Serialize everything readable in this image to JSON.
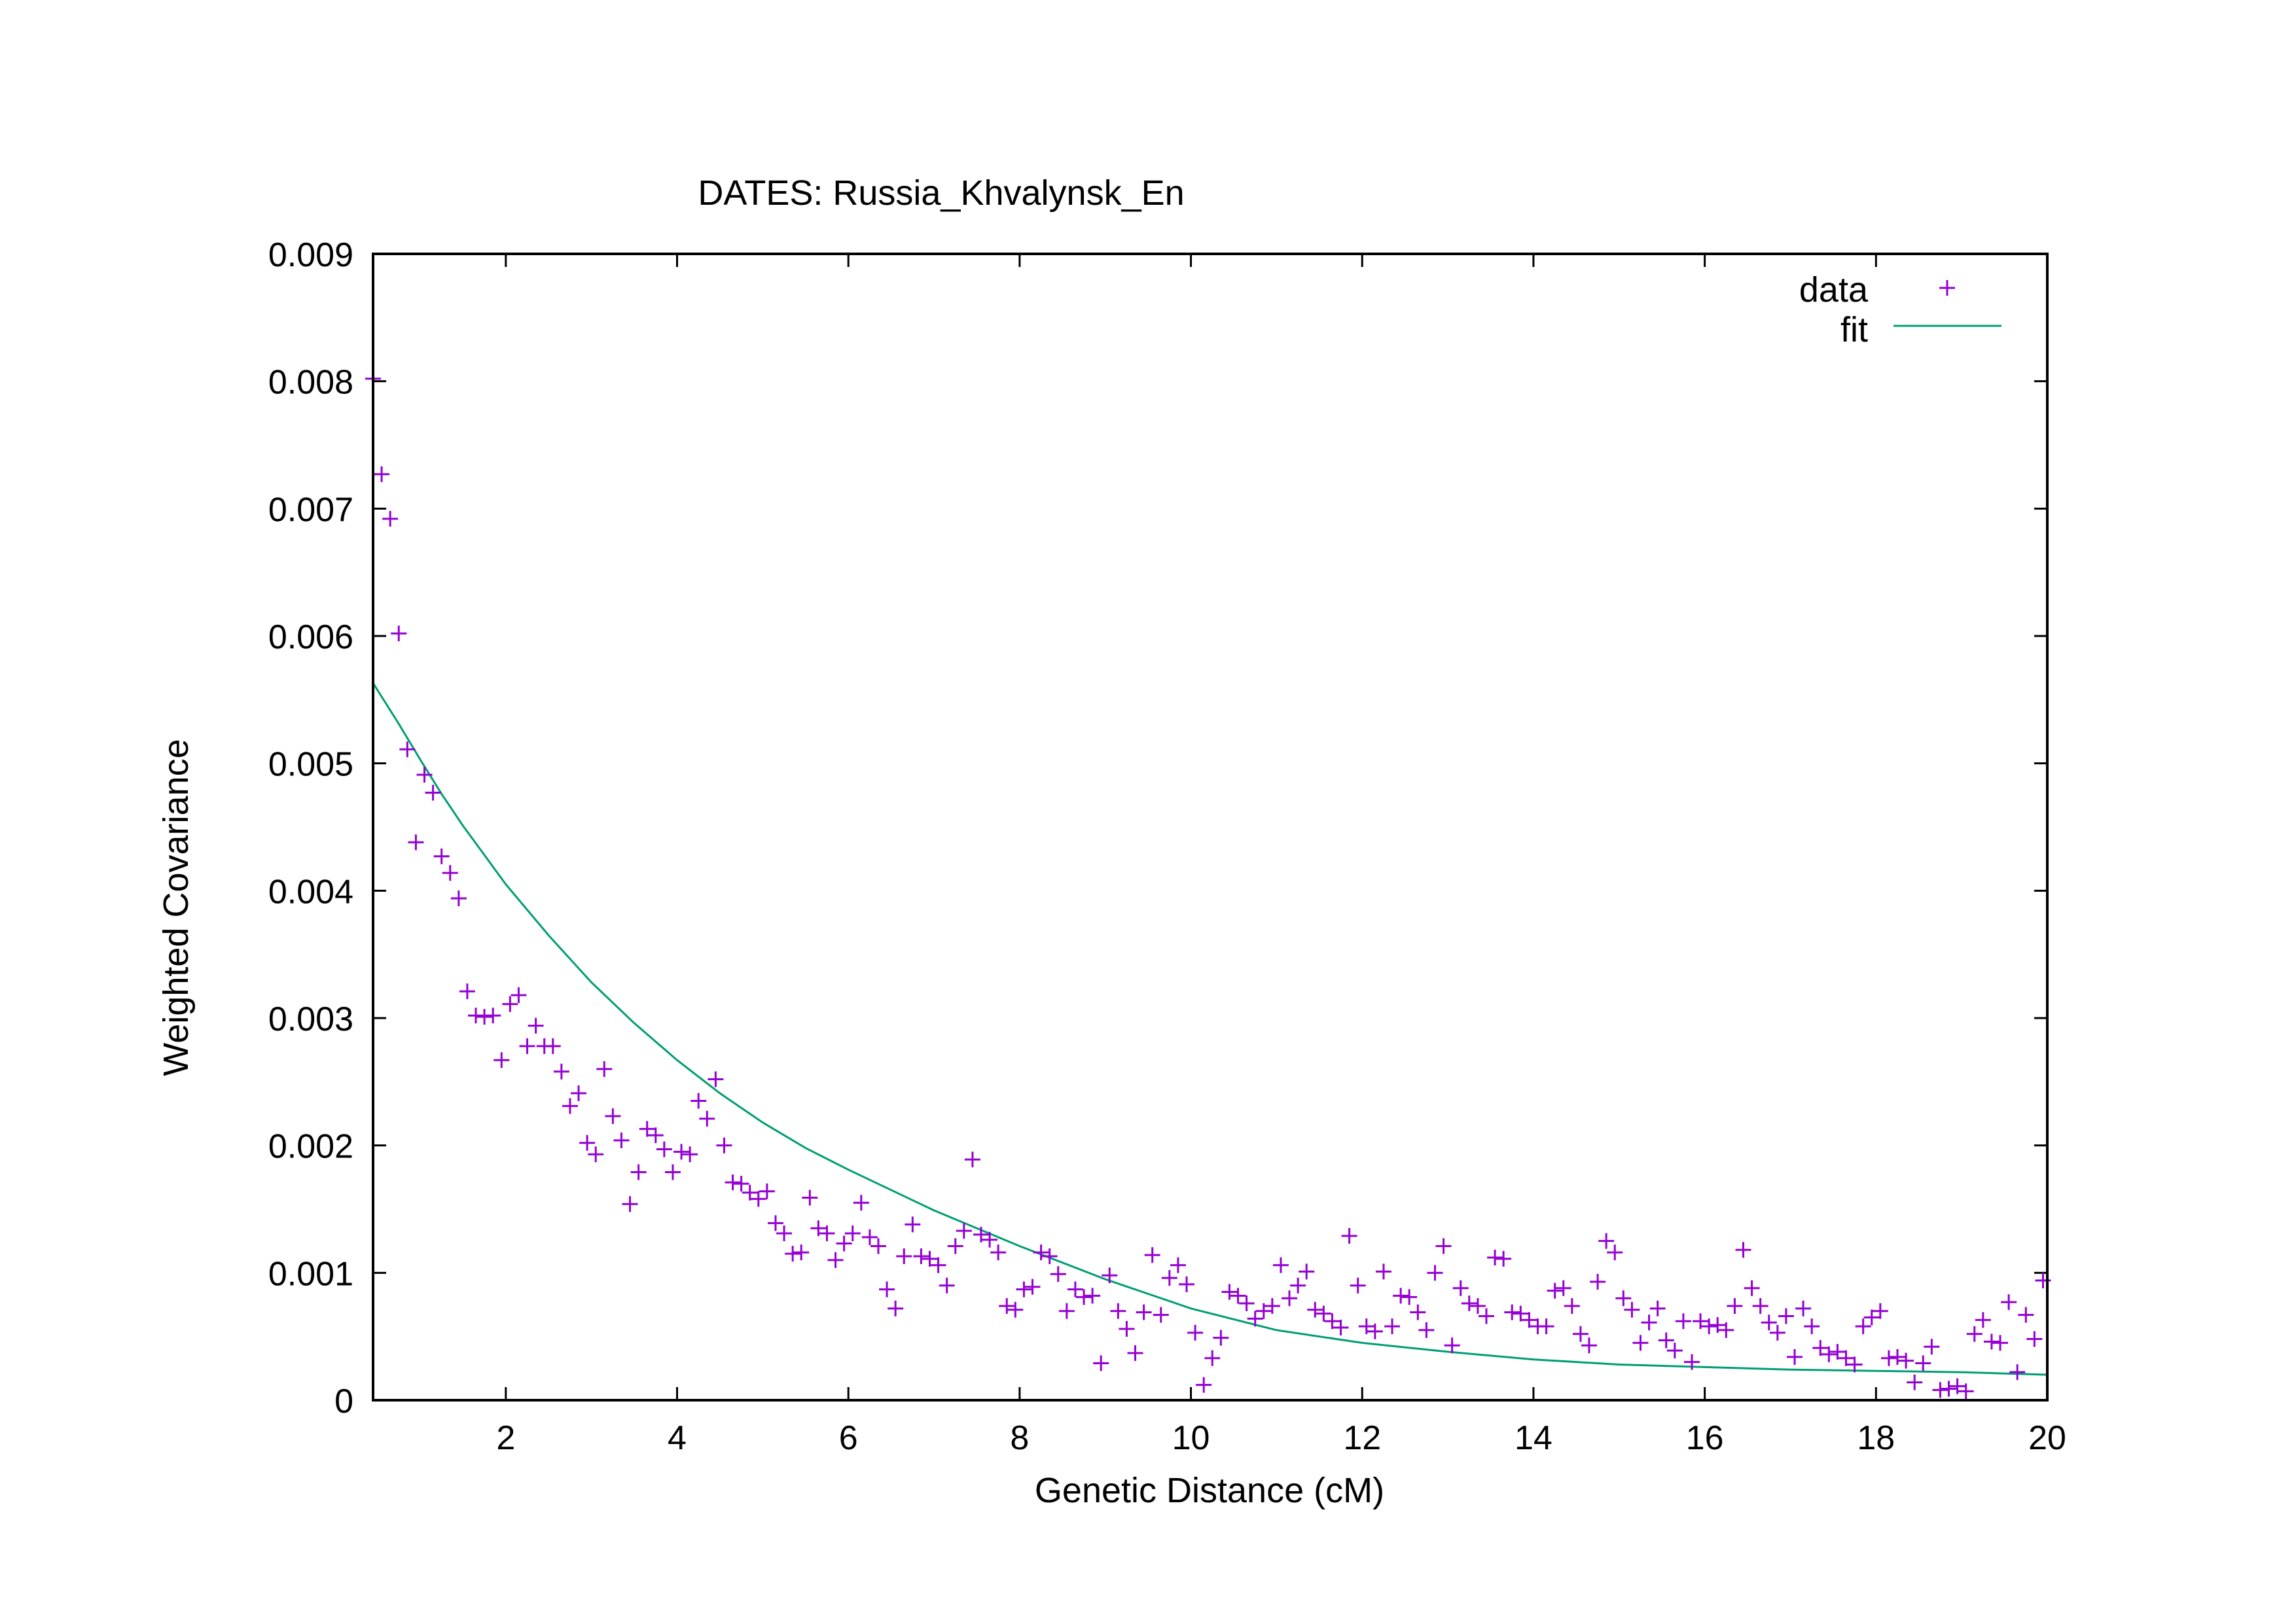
{
  "chart_data": {
    "type": "scatter",
    "title": "DATES: Russia_Khvalynsk_En",
    "xlabel": "Genetic Distance (cM)",
    "ylabel": "Weighted Covariance",
    "xlim": [
      0.45,
      20
    ],
    "ylim": [
      0,
      0.009
    ],
    "x_ticks": [
      "2",
      "4",
      "6",
      "8",
      "10",
      "12",
      "14",
      "16",
      "18",
      "20"
    ],
    "y_ticks": [
      "0",
      "0.001",
      "0.002",
      "0.003",
      "0.004",
      "0.005",
      "0.006",
      "0.007",
      "0.008",
      "0.009"
    ],
    "grid": false,
    "legend_position": "top-right",
    "colors": {
      "data": "#9400d3",
      "fit": "#009e73"
    },
    "series": [
      {
        "name": "data",
        "style": "points",
        "x": [
          0.45,
          0.55,
          0.65,
          0.75,
          0.85,
          0.95,
          1.05,
          1.15,
          1.25,
          1.35,
          1.45,
          1.55,
          1.65,
          1.75,
          1.85,
          1.95,
          2.05,
          2.15,
          2.25,
          2.35,
          2.45,
          2.55,
          2.65,
          2.75,
          2.85,
          2.95,
          3.05,
          3.15,
          3.25,
          3.35,
          3.45,
          3.55,
          3.65,
          3.75,
          3.85,
          3.95,
          4.05,
          4.15,
          4.25,
          4.35,
          4.45,
          4.55,
          4.65,
          4.75,
          4.85,
          4.95,
          5.05,
          5.15,
          5.25,
          5.35,
          5.45,
          5.55,
          5.65,
          5.75,
          5.85,
          5.95,
          6.05,
          6.15,
          6.25,
          6.35,
          6.45,
          6.55,
          6.65,
          6.75,
          6.85,
          6.95,
          7.05,
          7.15,
          7.25,
          7.35,
          7.45,
          7.55,
          7.65,
          7.75,
          7.85,
          7.95,
          8.05,
          8.15,
          8.25,
          8.35,
          8.45,
          8.55,
          8.65,
          8.75,
          8.85,
          8.95,
          9.05,
          9.15,
          9.25,
          9.35,
          9.45,
          9.55,
          9.65,
          9.75,
          9.85,
          9.95,
          10.05,
          10.15,
          10.25,
          10.35,
          10.45,
          10.55,
          10.65,
          10.75,
          10.85,
          10.95,
          11.05,
          11.15,
          11.25,
          11.35,
          11.45,
          11.55,
          11.65,
          11.75,
          11.85,
          11.95,
          12.05,
          12.15,
          12.25,
          12.35,
          12.45,
          12.55,
          12.65,
          12.75,
          12.85,
          12.95,
          13.05,
          13.15,
          13.25,
          13.35,
          13.45,
          13.55,
          13.65,
          13.75,
          13.85,
          13.95,
          14.05,
          14.15,
          14.25,
          14.35,
          14.45,
          14.55,
          14.65,
          14.75,
          14.85,
          14.95,
          15.05,
          15.15,
          15.25,
          15.35,
          15.45,
          15.55,
          15.65,
          15.75,
          15.85,
          15.95,
          16.05,
          16.15,
          16.25,
          16.35,
          16.45,
          16.55,
          16.65,
          16.75,
          16.85,
          16.95,
          17.05,
          17.15,
          17.25,
          17.35,
          17.45,
          17.55,
          17.65,
          17.75,
          17.85,
          17.95,
          18.05,
          18.15,
          18.25,
          18.35,
          18.45,
          18.55,
          18.65,
          18.75,
          18.85,
          18.95,
          19.05,
          19.15,
          19.25,
          19.35,
          19.45,
          19.55,
          19.65,
          19.75,
          19.85,
          19.95
        ],
        "y": [
          0.00802,
          0.00727,
          0.00692,
          0.00602,
          0.00511,
          0.00438,
          0.00491,
          0.00477,
          0.00427,
          0.00414,
          0.00394,
          0.00321,
          0.00302,
          0.00301,
          0.00302,
          0.00267,
          0.00311,
          0.00318,
          0.00278,
          0.00294,
          0.00278,
          0.00278,
          0.00258,
          0.00231,
          0.00241,
          0.00202,
          0.00193,
          0.0026,
          0.00223,
          0.00204,
          0.00154,
          0.00179,
          0.00213,
          0.00208,
          0.00197,
          0.00179,
          0.00195,
          0.00193,
          0.00235,
          0.00221,
          0.00252,
          0.002,
          0.00171,
          0.0017,
          0.00163,
          0.00158,
          0.00164,
          0.00139,
          0.00131,
          0.00115,
          0.00116,
          0.00159,
          0.00135,
          0.00131,
          0.0011,
          0.00123,
          0.00131,
          0.00155,
          0.00128,
          0.00121,
          0.00087,
          0.00072,
          0.00113,
          0.00138,
          0.00113,
          0.00111,
          0.00106,
          0.0009,
          0.00121,
          0.00133,
          0.00189,
          0.0013,
          0.00126,
          0.00116,
          0.00074,
          0.00071,
          0.00087,
          0.00089,
          0.00116,
          0.00113,
          0.00099,
          0.0007,
          0.00087,
          0.00081,
          0.00082,
          0.00029,
          0.00098,
          0.0007,
          0.00056,
          0.00037,
          0.00069,
          0.00114,
          0.00067,
          0.00096,
          0.00106,
          0.00091,
          0.00053,
          0.00012,
          0.00033,
          0.00049,
          0.00085,
          0.00082,
          0.00076,
          0.00064,
          0.0007,
          0.00074,
          0.00106,
          0.0008,
          0.0009,
          0.00101,
          0.00071,
          0.00068,
          0.00062,
          0.00057,
          0.00129,
          0.0009,
          0.00058,
          0.00054,
          0.00101,
          0.00058,
          0.00082,
          0.00081,
          0.00069,
          0.00055,
          0.001,
          0.00121,
          0.00043,
          0.00088,
          0.00076,
          0.00074,
          0.00066,
          0.00112,
          0.00111,
          0.00069,
          0.00068,
          0.00063,
          0.00058,
          0.00058,
          0.00086,
          0.00088,
          0.00074,
          0.00052,
          0.00043,
          0.00093,
          0.00125,
          0.00116,
          0.0008,
          0.00071,
          0.00045,
          0.00061,
          0.00072,
          0.00047,
          0.00039,
          0.00062,
          0.0003,
          0.00062,
          0.00058,
          0.00059,
          0.00055,
          0.00074,
          0.00118,
          0.00088,
          0.00074,
          0.00061,
          0.00053,
          0.00066,
          0.00034,
          0.00072,
          0.00058,
          0.00041,
          0.00036,
          0.00038,
          0.00033,
          0.00028,
          0.00058,
          0.00065,
          0.0007,
          0.00033,
          0.00034,
          0.00031,
          0.00014,
          0.00029,
          0.00042,
          8e-05,
          9e-05,
          0.00011,
          7e-05,
          0.00052,
          0.00063,
          0.00046,
          0.00045,
          0.00077,
          0.00022,
          0.00067,
          0.00048,
          0.00094
        ]
      },
      {
        "name": "fit",
        "style": "line",
        "x": [
          0.45,
          0.75,
          1.0,
          1.25,
          1.5,
          1.75,
          2.0,
          2.5,
          3.0,
          3.5,
          4.0,
          4.5,
          5.0,
          5.5,
          6.0,
          6.5,
          7.0,
          7.5,
          8.0,
          9.0,
          10.0,
          11.0,
          12.0,
          13.0,
          14.0,
          15.0,
          16.0,
          17.0,
          18.0,
          19.0,
          20.0
        ],
        "y": [
          0.00563,
          0.00531,
          0.00503,
          0.00476,
          0.00451,
          0.00428,
          0.00405,
          0.00365,
          0.00328,
          0.00296,
          0.00267,
          0.00241,
          0.00218,
          0.00198,
          0.00181,
          0.00165,
          0.00149,
          0.00135,
          0.00121,
          0.00095,
          0.00072,
          0.00055,
          0.00045,
          0.00038,
          0.00032,
          0.00028,
          0.00026,
          0.00024,
          0.00023,
          0.00022,
          0.0002
        ]
      }
    ]
  }
}
